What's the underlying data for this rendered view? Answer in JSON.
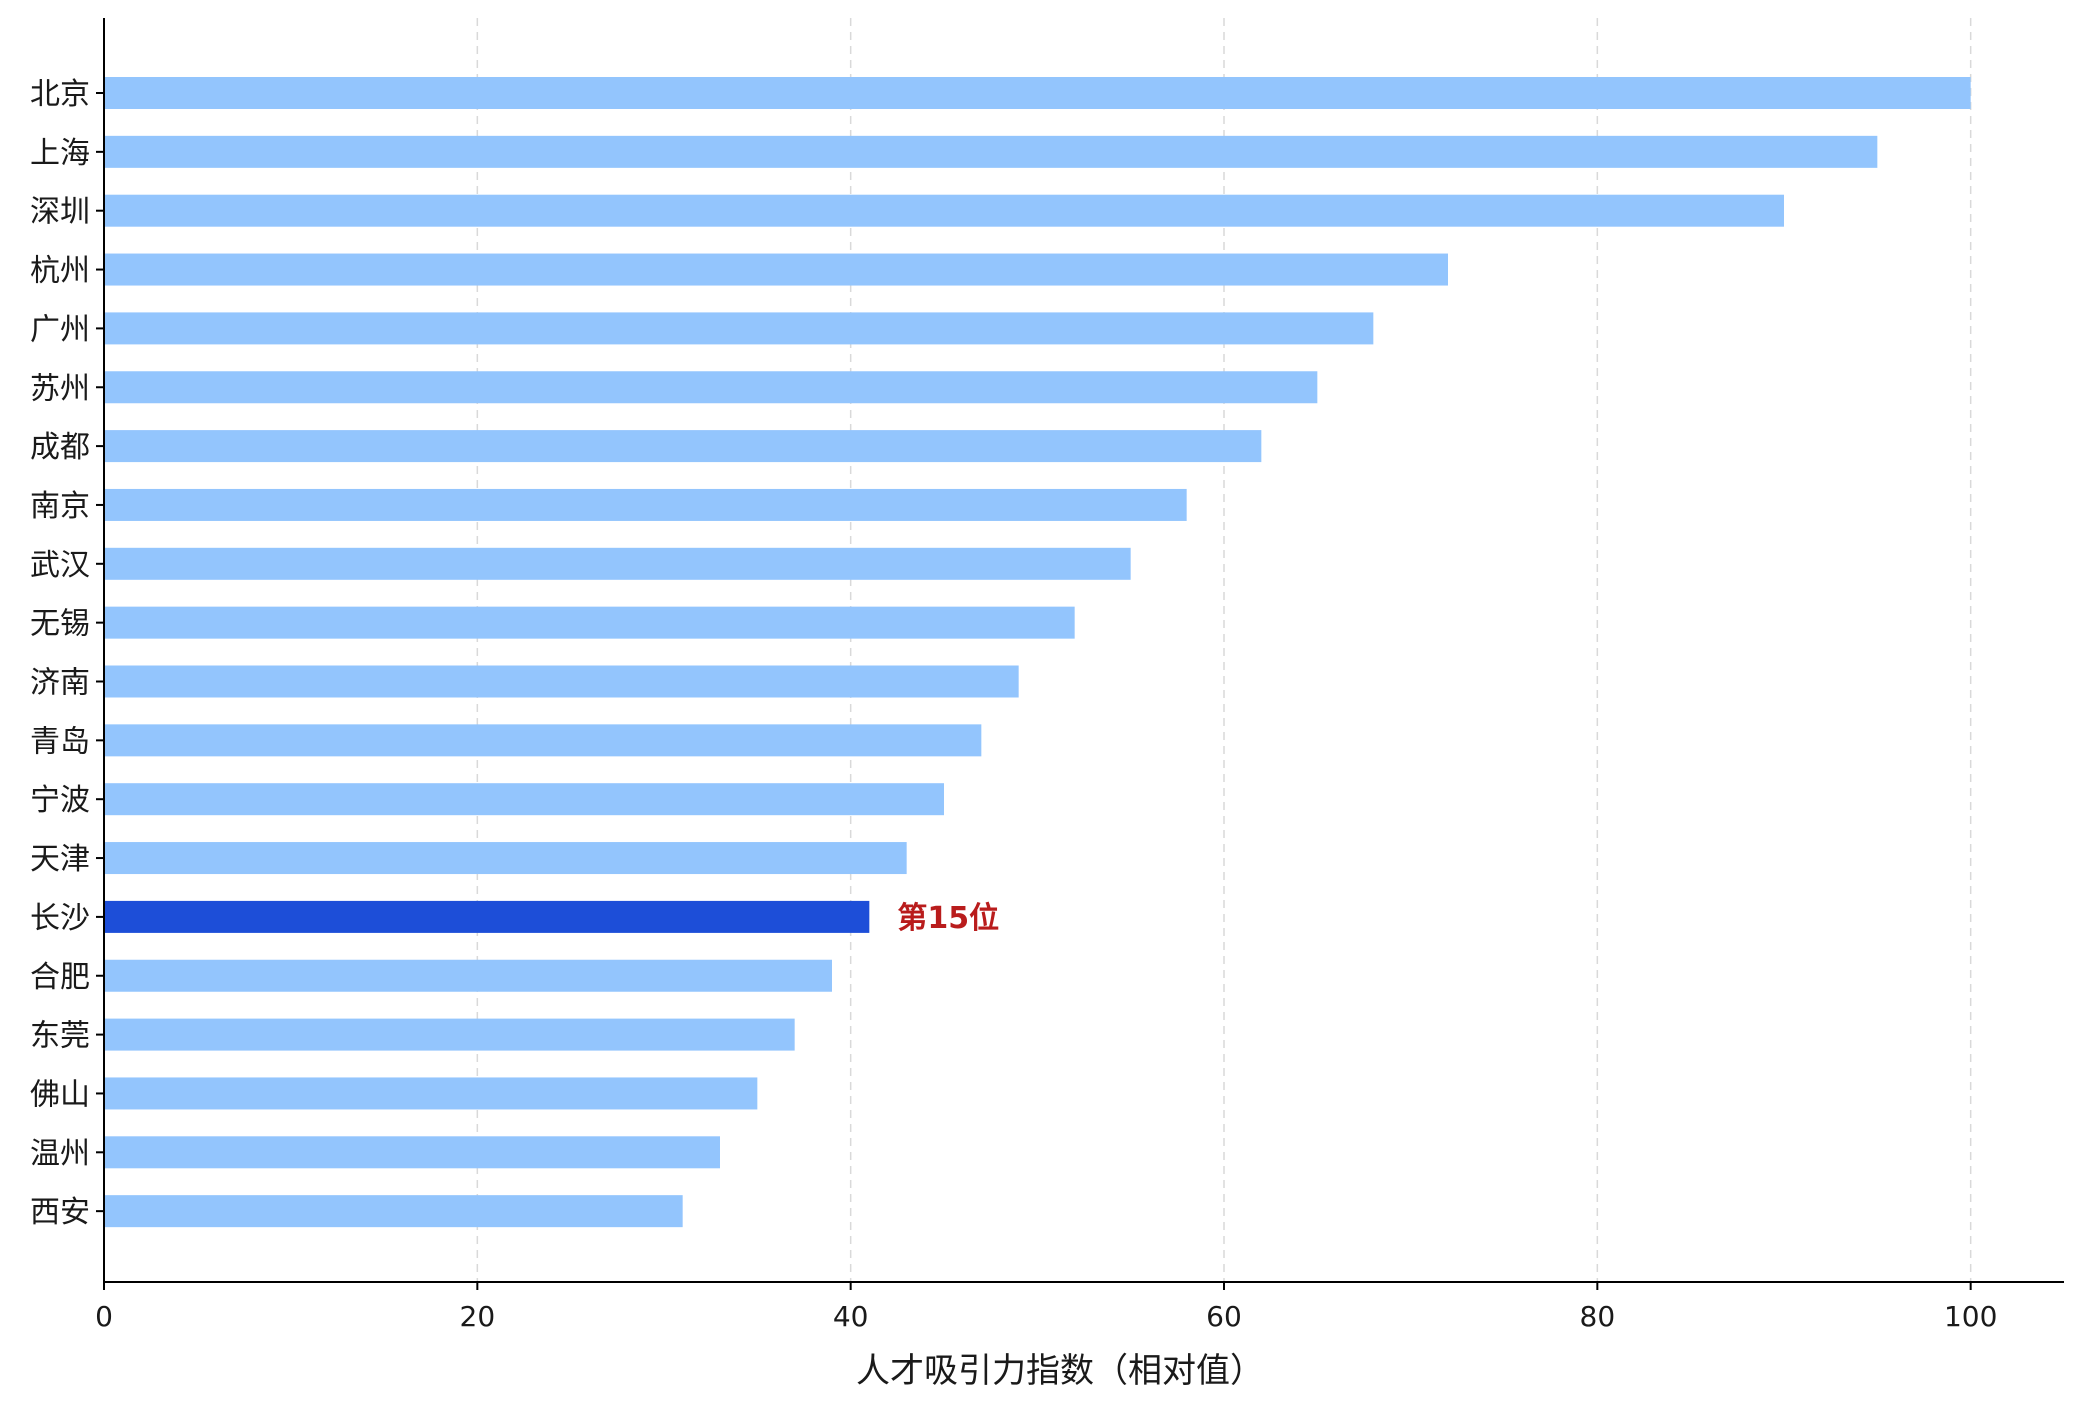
{
  "chart_data": {
    "type": "bar",
    "orientation": "horizontal",
    "categories": [
      "北京",
      "上海",
      "深圳",
      "杭州",
      "广州",
      "苏州",
      "成都",
      "南京",
      "武汉",
      "无锡",
      "济南",
      "青岛",
      "宁波",
      "天津",
      "长沙",
      "合肥",
      "东莞",
      "佛山",
      "温州",
      "西安"
    ],
    "values": [
      100,
      95,
      90,
      72,
      68,
      65,
      62,
      58,
      55,
      52,
      49,
      47,
      45,
      43,
      41,
      39,
      37,
      35,
      33,
      31
    ],
    "highlight_category": "长沙",
    "annotation": "第15位",
    "title": "",
    "xlabel": "人才吸引力指数（相对值）",
    "ylabel": "",
    "xlim": [
      0,
      105
    ],
    "xticks": [
      "0",
      "20",
      "40",
      "60",
      "80",
      "100"
    ],
    "grid": "x dashed",
    "legend": "none",
    "colors": {
      "bar": "#93c5fd",
      "highlight": "#1d4ed8",
      "annotation": "#b91c1c",
      "grid": "#d9d9d9",
      "axis": "#000000"
    }
  }
}
